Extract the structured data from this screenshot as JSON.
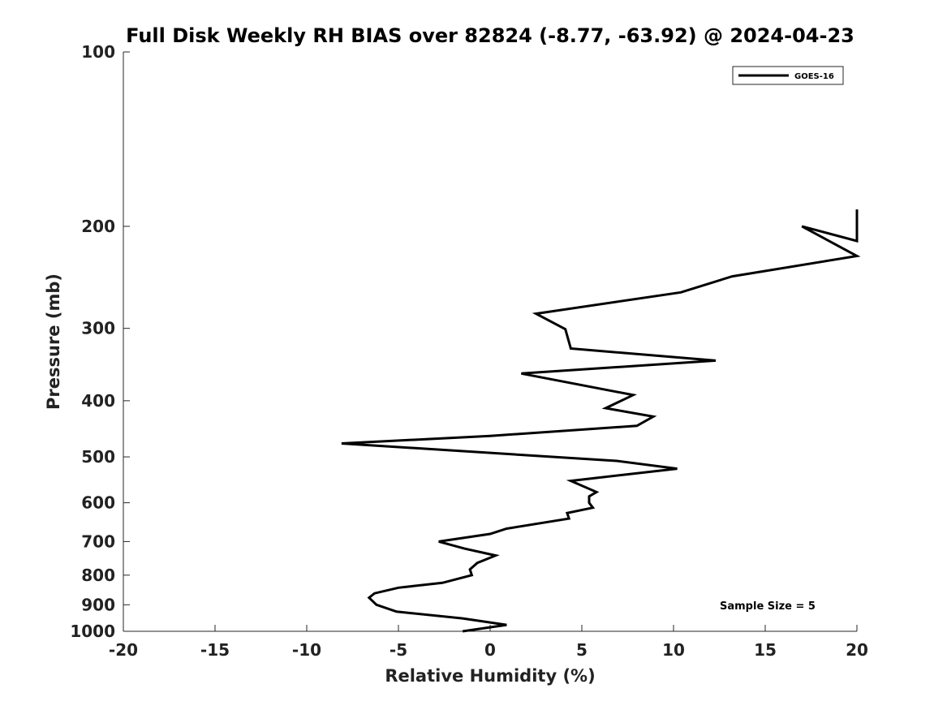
{
  "chart_data": {
    "type": "line",
    "title": "Full Disk Weekly RH BIAS over 82824 (-8.77, -63.92) @ 2024-04-23",
    "xlabel": "Relative Humidity (%)",
    "ylabel": "Pressure (mb)",
    "xlim": [
      -20,
      20
    ],
    "ylim": [
      1000,
      100
    ],
    "y_scale": "log",
    "x_ticks": [
      -20,
      -15,
      -10,
      -5,
      0,
      5,
      10,
      15,
      20
    ],
    "x_tick_labels": [
      "-20",
      "-15",
      "-10",
      "-5",
      "0",
      "5",
      "10",
      "15",
      "20"
    ],
    "y_ticks": [
      100,
      200,
      300,
      400,
      500,
      600,
      700,
      800,
      900,
      1000
    ],
    "y_tick_labels": [
      "100",
      "200",
      "300",
      "400",
      "500",
      "600",
      "700",
      "800",
      "900",
      "1000"
    ],
    "grid": false,
    "legend_position": "top-right",
    "annotation": "Sample Size = 5",
    "series": [
      {
        "name": "GOES-16",
        "color": "#000000",
        "points": [
          {
            "x": -1.5,
            "y": 1000
          },
          {
            "x": 0.9,
            "y": 975
          },
          {
            "x": -1.5,
            "y": 950
          },
          {
            "x": -5.1,
            "y": 925
          },
          {
            "x": -6.2,
            "y": 900
          },
          {
            "x": -6.6,
            "y": 875
          },
          {
            "x": -6.3,
            "y": 860
          },
          {
            "x": -5.0,
            "y": 841
          },
          {
            "x": -2.6,
            "y": 825
          },
          {
            "x": -1.0,
            "y": 800
          },
          {
            "x": -1.1,
            "y": 782
          },
          {
            "x": -0.7,
            "y": 762
          },
          {
            "x": 0.3,
            "y": 740
          },
          {
            "x": -1.4,
            "y": 720
          },
          {
            "x": -2.8,
            "y": 700
          },
          {
            "x": 0.0,
            "y": 679
          },
          {
            "x": 0.9,
            "y": 665
          },
          {
            "x": 4.3,
            "y": 639
          },
          {
            "x": 4.2,
            "y": 625
          },
          {
            "x": 5.6,
            "y": 612
          },
          {
            "x": 5.4,
            "y": 600
          },
          {
            "x": 5.4,
            "y": 585
          },
          {
            "x": 5.8,
            "y": 575
          },
          {
            "x": 4.4,
            "y": 550
          },
          {
            "x": 10.2,
            "y": 524
          },
          {
            "x": 6.9,
            "y": 508
          },
          {
            "x": -8.1,
            "y": 474
          },
          {
            "x": 0.0,
            "y": 460
          },
          {
            "x": 8.0,
            "y": 442
          },
          {
            "x": 8.9,
            "y": 426
          },
          {
            "x": 6.3,
            "y": 412
          },
          {
            "x": 7.8,
            "y": 391
          },
          {
            "x": 1.7,
            "y": 359
          },
          {
            "x": 12.3,
            "y": 341
          },
          {
            "x": 4.4,
            "y": 325
          },
          {
            "x": 4.1,
            "y": 301
          },
          {
            "x": 2.5,
            "y": 283
          },
          {
            "x": 10.4,
            "y": 260
          },
          {
            "x": 13.2,
            "y": 244
          },
          {
            "x": 20.0,
            "y": 225
          },
          {
            "x": 17.0,
            "y": 200
          },
          {
            "x": 20.0,
            "y": 212
          },
          {
            "x": 20.0,
            "y": 187
          }
        ]
      }
    ]
  }
}
